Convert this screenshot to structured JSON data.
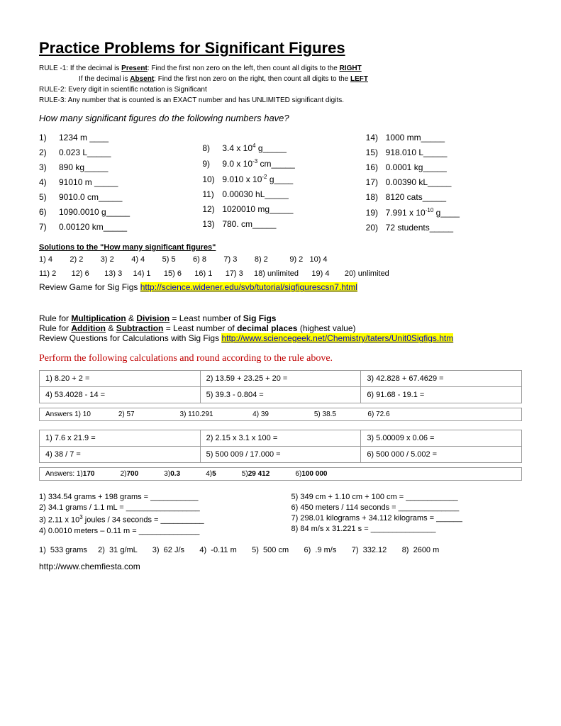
{
  "title": "Practice Problems for Significant Figures",
  "rules": {
    "r1a": "RULE -1: If the decimal is ",
    "r1b": "Present",
    "r1c": ": Find the first non zero on the left, then count all digits to the ",
    "r1d": "RIGHT",
    "r1e": "If the decimal is ",
    "r1f": "Absent",
    "r1g": ": Find the first non zero on the right, then count all digits to the ",
    "r1h": "LEFT",
    "r2": "RULE-2: Every digit in scientific notation is Significant",
    "r3": "RULE-3: Any number that is counted is an EXACT number and has UNLIMITED significant digits."
  },
  "q": "How many significant figures do the following numbers have?",
  "col1": [
    {
      "n": "1)",
      "v": "1234 m ____"
    },
    {
      "n": "2)",
      "v": "0.023 L_____"
    },
    {
      "n": "3)",
      "v": "890  kg_____"
    },
    {
      "n": "4)",
      "v": "91010 m _____"
    },
    {
      "n": "5)",
      "v": "9010.0 cm_____"
    },
    {
      "n": "6)",
      "v": "1090.0010 g_____"
    },
    {
      "n": "7)",
      "v": "0.00120 km_____"
    }
  ],
  "col2": [
    {
      "n": "8)",
      "v": "3.4 x 10⁴ g_____"
    },
    {
      "n": "9)",
      "v": "9.0 x 10⁻³ cm_____"
    },
    {
      "n": "10)",
      "v": "9.010 x 10⁻² g____"
    },
    {
      "n": "11)",
      "v": "0.00030 hL_____"
    },
    {
      "n": "12)",
      "v": "1020010  mg_____"
    },
    {
      "n": "13)",
      "v": "780.   cm_____"
    }
  ],
  "col3": [
    {
      "n": "14)",
      "v": "1000  mm_____"
    },
    {
      "n": "15)",
      "v": "918.010 L_____"
    },
    {
      "n": "16)",
      "v": "0.0001 kg_____"
    },
    {
      "n": "17)",
      "v": "0.00390 kL_____"
    },
    {
      "n": "18)",
      "v": "8120 cats_____"
    },
    {
      "n": "19)",
      "v": "7.991 x 10⁻¹⁰ g____"
    },
    {
      "n": "20)",
      "v": "72 students_____"
    }
  ],
  "solHdr": "Solutions to the \"How many significant figures\"",
  "sol1": "1) 4        2) 2        3) 2        4) 4        5) 5        6) 8        7) 3        8) 2          9) 2   10) 4",
  "sol2": "11) 2       12) 6       13) 3     14) 1      15) 6      16) 1      17) 3     18) unlimited      19) 4       20) unlimited",
  "revLabel": "Review Game for Sig Figs  ",
  "revLink": "http://science.widener.edu/svb/tutorial/sigfigurescsn7.html",
  "mulRule": {
    "a": "Rule for ",
    "b": "Multiplication",
    "c": " & ",
    "d": "Division",
    "e": " = Least number of ",
    "f": "Sig Figs"
  },
  "addRule": {
    "a": "Rule for ",
    "b": "Addition",
    "c": " & ",
    "d": "Subtraction",
    "e": " = Least number of ",
    "f": "decimal places",
    "g": " (highest value)"
  },
  "revQ": "Review Questions for Calculations with Sig Figs  ",
  "revQLink": "http://www.sciencegeek.net/Chemistry/taters/Unit0Sigfigs.htm",
  "perf": "Perform the following calculations and round according to the rule above.",
  "t1": [
    [
      "1)   8.20 + 2 =",
      "2)   13.59 + 23.25 + 20 =",
      "3)   42.828 + 67.4629 ="
    ],
    [
      "4)   53.4028 - 14 =",
      "5)   39.3 - 0.804 =",
      "6)   91.68 - 19.1 ="
    ]
  ],
  "a1": "Answers 1) 10              2) 57                       3) 110.291                    4) 39                       5) 38.5                6) 72.6",
  "t2": [
    [
      "1)  7.6 x 21.9 =",
      "2)  2.15 x 3.1 x 100 =",
      "3)  5.00009 x 0.06 ="
    ],
    [
      "4)  38 / 7 =",
      "5)  500 009 / 17.000 =",
      "6)  500 000 / 5.002 ="
    ]
  ],
  "a2p": "Answers: 1)",
  "a2v": [
    "170",
    "700",
    "0.3",
    "5",
    "29 412",
    "100 000"
  ],
  "calcL": [
    "1)  334.54 grams + 198 grams = ___________",
    "2)  34.1 grams / 1.1 mL = _________________",
    "3)  2.11 x 10³ joules / 34 seconds = __________",
    "4)  0.0010 meters – 0.11 m = ______________"
  ],
  "calcR": [
    "5)  349 cm + 1.10 cm + 100 cm = ____________",
    "6)  450 meters / 114 seconds = ______________",
    "7)  298.01 kilograms + 34.112 kilograms = ______",
    "8)  84 m/s x 31.221 s = _______________"
  ],
  "fAns": "1)  533 grams     2)  31 g/mL       3)  62 J/s       4)  -0.11 m       5)  500 cm       6)  .9 m/s       7)  332.12       8)  2600 m",
  "footer": "http://www.chemfiesta.com"
}
